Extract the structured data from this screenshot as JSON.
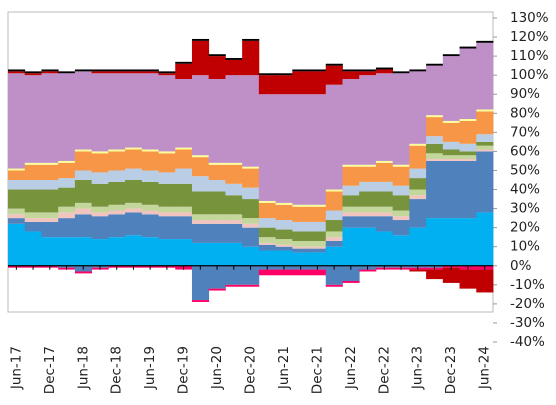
{
  "chart_data": {
    "type": "stacked_bar",
    "categories": [
      "Jun-17",
      null,
      "Dec-17",
      null,
      "Jun-18",
      null,
      "Dec-18",
      null,
      "Jun-19",
      null,
      "Dec-19",
      null,
      "Jun-20",
      null,
      "Dec-20",
      null,
      "Jun-21",
      null,
      "Dec-21",
      null,
      "Jun-22",
      null,
      "Dec-22",
      null,
      "Jun-23",
      null,
      "Dec-23",
      null,
      "Jun-24"
    ],
    "ylim": [
      -40,
      130
    ],
    "yticks": [
      {
        "value": -40,
        "label": "-40%"
      },
      {
        "value": -30,
        "label": "-30%"
      },
      {
        "value": -20,
        "label": "-20%"
      },
      {
        "value": -10,
        "label": "-10%"
      },
      {
        "value": 0,
        "label": "0%"
      },
      {
        "value": 10,
        "label": "10%"
      },
      {
        "value": 20,
        "label": "20%"
      },
      {
        "value": 30,
        "label": "30%"
      },
      {
        "value": 40,
        "label": "40%"
      },
      {
        "value": 50,
        "label": "50%"
      },
      {
        "value": 60,
        "label": "60%"
      },
      {
        "value": 70,
        "label": "70%"
      },
      {
        "value": 80,
        "label": "80%"
      },
      {
        "value": 90,
        "label": "90%"
      },
      {
        "value": 100,
        "label": "100%"
      },
      {
        "value": 110,
        "label": "110%"
      },
      {
        "value": 120,
        "label": "120%"
      },
      {
        "value": 130,
        "label": "130%"
      }
    ],
    "series": [
      {
        "color": "#00b0f0",
        "values": [
          22,
          18,
          15,
          15,
          15,
          14,
          15,
          16,
          15,
          14,
          14,
          12,
          12,
          12,
          10,
          8,
          8,
          7,
          7,
          10,
          20,
          20,
          18,
          16,
          20,
          25,
          25,
          25,
          28
        ]
      },
      {
        "color": "#4f81bd",
        "values": [
          3,
          5,
          8,
          10,
          12,
          12,
          12,
          12,
          12,
          12,
          12,
          10,
          10,
          10,
          10,
          3,
          2,
          2,
          2,
          3,
          6,
          6,
          8,
          8,
          15,
          30,
          30,
          30,
          32
        ]
      },
      {
        "color": "#f2c4c0",
        "values": [
          2,
          2,
          2,
          3,
          3,
          2,
          2,
          2,
          2,
          2,
          2,
          2,
          2,
          2,
          2,
          1,
          1,
          1,
          1,
          2,
          2,
          2,
          2,
          2,
          2,
          1,
          1,
          1,
          1
        ]
      },
      {
        "color": "#c3d69b",
        "values": [
          3,
          3,
          3,
          3,
          3,
          3,
          3,
          3,
          3,
          3,
          3,
          3,
          3,
          3,
          3,
          3,
          3,
          3,
          3,
          3,
          3,
          3,
          3,
          3,
          3,
          3,
          2,
          2,
          2
        ]
      },
      {
        "color": "#77933c",
        "values": [
          10,
          12,
          12,
          10,
          12,
          12,
          12,
          12,
          12,
          12,
          12,
          12,
          12,
          10,
          10,
          5,
          5,
          5,
          5,
          6,
          6,
          8,
          8,
          8,
          6,
          5,
          3,
          2,
          2
        ]
      },
      {
        "color": "#b9cde5",
        "values": [
          5,
          5,
          5,
          5,
          5,
          6,
          6,
          6,
          6,
          6,
          8,
          8,
          6,
          6,
          6,
          5,
          5,
          5,
          5,
          5,
          5,
          5,
          5,
          5,
          5,
          4,
          4,
          4,
          4
        ]
      },
      {
        "color": "#f79646",
        "values": [
          5,
          8,
          8,
          8,
          10,
          10,
          10,
          10,
          10,
          10,
          10,
          10,
          8,
          10,
          10,
          8,
          8,
          8,
          8,
          10,
          10,
          8,
          10,
          10,
          12,
          10,
          10,
          12,
          12
        ]
      },
      {
        "color": "#ffff99",
        "values": [
          1,
          1,
          1,
          1,
          1,
          1,
          1,
          1,
          1,
          1,
          1,
          1,
          1,
          1,
          1,
          1,
          1,
          1,
          1,
          1,
          1,
          1,
          1,
          1,
          1,
          1,
          1,
          1,
          1
        ]
      },
      {
        "color": "#bf8fc8",
        "values": [
          50,
          46,
          47,
          46,
          41,
          41,
          40,
          39,
          40,
          40,
          36,
          42,
          44,
          46,
          48,
          56,
          57,
          58,
          58,
          55,
          45,
          47,
          46,
          48,
          38,
          26,
          34,
          37,
          35
        ]
      },
      {
        "color": "#c00000",
        "values": [
          1,
          1,
          1,
          0,
          0,
          1,
          1,
          1,
          1,
          1,
          8,
          18,
          12,
          8,
          18,
          10,
          10,
          12,
          12,
          10,
          4,
          2,
          2,
          0,
          0,
          0,
          0,
          0,
          0
        ]
      },
      {
        "color": "#000000",
        "values": [
          1,
          1,
          1,
          1,
          1,
          1,
          1,
          1,
          1,
          1,
          1,
          1,
          1,
          1,
          1,
          1,
          1,
          1,
          1,
          1,
          1,
          1,
          1,
          1,
          1,
          1,
          1,
          1,
          1
        ]
      },
      {
        "color": "#4f81bd",
        "values": [
          0,
          0,
          0,
          -1,
          -3,
          -1,
          0,
          0,
          0,
          0,
          0,
          -18,
          -12,
          -10,
          -10,
          -2,
          -2,
          -2,
          -2,
          -10,
          -8,
          -2,
          -1,
          -1,
          -1,
          -1,
          0,
          0,
          0
        ]
      },
      {
        "color": "#ff0066",
        "values": [
          -1,
          -1,
          -1,
          -1,
          -1,
          -1,
          -1,
          -1,
          -1,
          -1,
          -2,
          -1,
          -1,
          -1,
          -1,
          -3,
          -3,
          -3,
          -3,
          -1,
          -1,
          -1,
          -1,
          -1,
          -1,
          -1,
          -1,
          -2,
          -2
        ]
      },
      {
        "color": "#c00000",
        "values": [
          0,
          0,
          0,
          0,
          0,
          0,
          0,
          0,
          0,
          0,
          0,
          0,
          0,
          0,
          0,
          0,
          0,
          0,
          0,
          0,
          0,
          0,
          0,
          0,
          -1,
          -5,
          -8,
          -10,
          -12
        ]
      }
    ]
  }
}
